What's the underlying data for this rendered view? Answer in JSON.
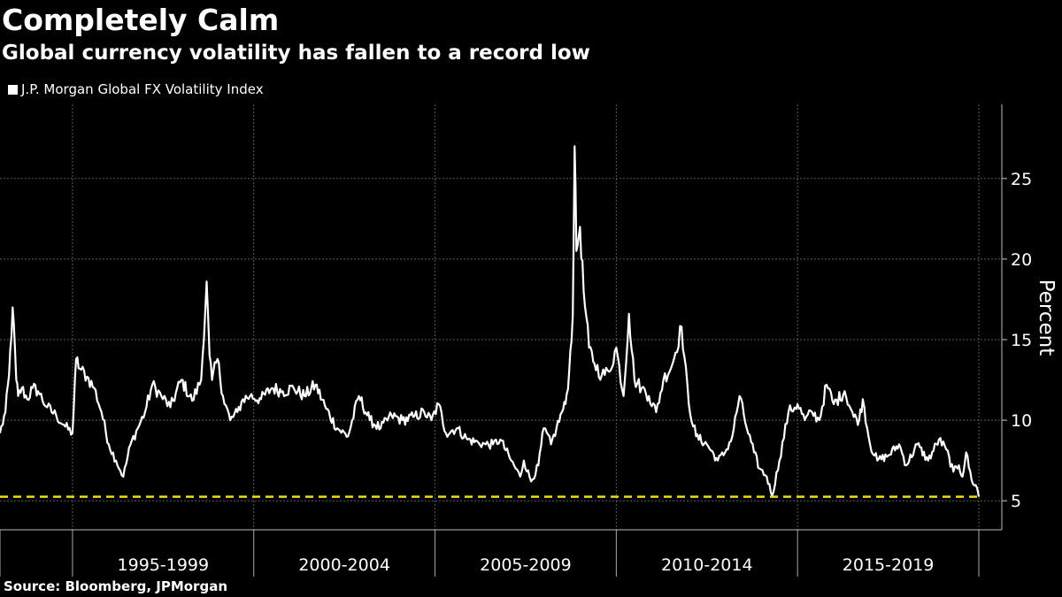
{
  "title": "Completely Calm",
  "subtitle": "Global currency volatility has fallen to a record low",
  "source": "Source: Bloomberg, JPMorgan",
  "chart_data": {
    "type": "line",
    "title": "Completely Calm",
    "subtitle": "Global currency volatility has fallen to a record low",
    "ylabel": "Percent",
    "xlabel": "",
    "ylim": [
      3.2,
      29.6
    ],
    "y_ticks": [
      5,
      10,
      15,
      20,
      25
    ],
    "y_axis_side": "right",
    "xlim": [
      1992.0,
      2019.0
    ],
    "x_tick_dates": [
      1992.0,
      1994.0,
      1999.0,
      2004.0,
      2009.0,
      2014.0,
      2019.0
    ],
    "x_category_labels": [
      {
        "label": "1995-1999",
        "center": 1996.5
      },
      {
        "label": "2000-2004",
        "center": 2001.5
      },
      {
        "label": "2005-2009",
        "center": 2006.5
      },
      {
        "label": "2010-2014",
        "center": 2011.5
      },
      {
        "label": "2015-2019",
        "center": 2016.5
      }
    ],
    "grid": true,
    "legend": "top-left",
    "line_color": "#ffffff",
    "reference_line_color": "#f0dc1e",
    "series": [
      {
        "name": "J.P. Morgan Global FX Volatility Index",
        "x": [
          1992.0,
          1992.15,
          1992.25,
          1992.35,
          1992.45,
          1992.5,
          1992.6,
          1992.75,
          1992.9,
          1993.05,
          1993.3,
          1993.55,
          1993.8,
          1994.0,
          1994.1,
          1994.2,
          1994.4,
          1994.6,
          1994.8,
          1995.0,
          1995.2,
          1995.4,
          1995.6,
          1995.8,
          1996.0,
          1996.2,
          1996.45,
          1996.7,
          1997.0,
          1997.3,
          1997.55,
          1997.7,
          1997.78,
          1997.85,
          1998.0,
          1998.15,
          1998.35,
          1998.55,
          1998.7,
          1998.9,
          1999.2,
          1999.5,
          1999.8,
          2000.1,
          2000.4,
          2000.7,
          2001.0,
          2001.3,
          2001.6,
          2001.9,
          2002.2,
          2002.5,
          2002.8,
          2003.1,
          2003.4,
          2003.7,
          2003.9,
          2004.1,
          2004.3,
          2004.6,
          2004.9,
          2005.2,
          2005.4,
          2005.6,
          2005.8,
          2006.1,
          2006.35,
          2006.45,
          2006.65,
          2006.85,
          2007.0,
          2007.2,
          2007.35,
          2007.5,
          2007.6,
          2007.7,
          2007.8,
          2007.85,
          2007.9,
          2008.0,
          2008.1,
          2008.25,
          2008.4,
          2008.6,
          2008.8,
          2009.0,
          2009.2,
          2009.35,
          2009.5,
          2009.7,
          2009.9,
          2010.1,
          2010.3,
          2010.55,
          2010.8,
          2011.0,
          2011.2,
          2011.5,
          2011.8,
          2012.0,
          2012.2,
          2012.4,
          2012.6,
          2012.8,
          2012.95,
          2013.15,
          2013.3,
          2013.5,
          2013.75,
          2014.0,
          2014.2,
          2014.4,
          2014.6,
          2014.8,
          2015.0,
          2015.3,
          2015.55,
          2015.7,
          2015.8,
          2016.0,
          2016.2,
          2016.5,
          2016.8,
          2017.0,
          2017.3,
          2017.6,
          2017.9,
          2018.1,
          2018.3,
          2018.45,
          2018.55,
          2018.65,
          2018.8,
          2018.95,
          2019.0
        ],
        "values": [
          9.2,
          10.5,
          12.8,
          17.0,
          12.5,
          11.5,
          12.0,
          11.3,
          12.0,
          11.8,
          10.8,
          10.3,
          9.6,
          9.2,
          13.8,
          13.2,
          12.7,
          12.0,
          10.5,
          8.5,
          7.5,
          6.5,
          8.5,
          9.5,
          10.5,
          12.2,
          11.5,
          10.8,
          12.5,
          11.2,
          12.5,
          18.6,
          14.0,
          12.5,
          13.8,
          11.5,
          10.0,
          10.5,
          11.3,
          11.5,
          11.3,
          12.0,
          11.8,
          12.0,
          11.5,
          12.2,
          10.7,
          9.5,
          9.0,
          11.5,
          10.0,
          9.5,
          10.3,
          10.0,
          10.2,
          10.5,
          10.0,
          11.0,
          9.2,
          9.5,
          8.8,
          8.6,
          8.5,
          8.5,
          8.8,
          7.5,
          6.5,
          7.5,
          6.2,
          7.2,
          9.5,
          8.5,
          9.5,
          10.5,
          11.0,
          13.0,
          16.5,
          27.0,
          20.5,
          22.0,
          18.0,
          14.5,
          13.5,
          12.8,
          13.0,
          14.5,
          11.5,
          16.6,
          12.5,
          12.0,
          11.5,
          10.5,
          12.5,
          13.5,
          15.8,
          11.0,
          9.0,
          8.5,
          7.5,
          8.0,
          9.0,
          11.5,
          9.5,
          8.0,
          7.0,
          6.5,
          5.3,
          7.5,
          10.5,
          11.0,
          10.0,
          10.5,
          10.0,
          12.2,
          11.0,
          11.8,
          10.2,
          10.0,
          11.3,
          8.5,
          7.5,
          7.8,
          8.5,
          7.2,
          8.5,
          7.5,
          8.8,
          8.2,
          6.8,
          7.2,
          6.5,
          8.0,
          6.3,
          5.8,
          5.25
        ]
      }
    ],
    "reference_lines": [
      {
        "axis": "y",
        "value": 5.25,
        "style": "dashed"
      }
    ]
  }
}
